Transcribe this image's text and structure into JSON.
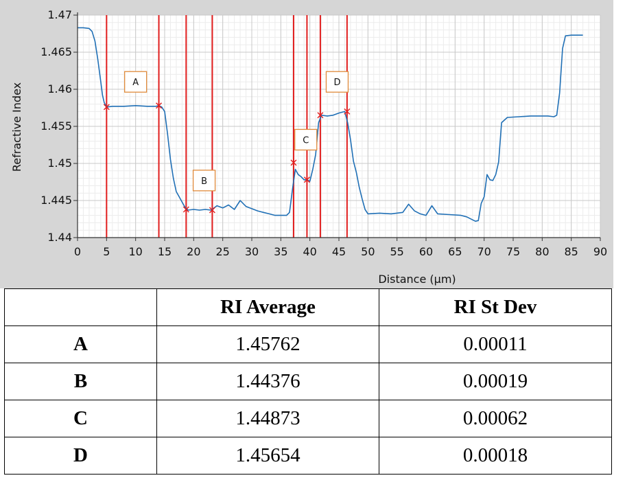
{
  "chart_data": {
    "type": "line",
    "xlabel": "Distance (µm)",
    "ylabel": "Refractive Index",
    "xlim": [
      0,
      90
    ],
    "ylim": [
      1.44,
      1.47
    ],
    "xticks": [
      0,
      5,
      10,
      15,
      20,
      25,
      30,
      35,
      40,
      45,
      50,
      55,
      60,
      65,
      70,
      75,
      80,
      85,
      90
    ],
    "yticks": [
      1.44,
      1.445,
      1.45,
      1.455,
      1.46,
      1.465,
      1.47
    ],
    "ytick_labels": [
      "1.44",
      "1.445",
      "1.45",
      "1.455",
      "1.46",
      "1.465",
      "1.47"
    ],
    "grid": true,
    "series": [
      {
        "color": "#1f6fb5",
        "x": [
          0,
          1,
          2,
          2.5,
          3,
          3.5,
          4,
          4.3,
          4.6,
          5,
          6,
          8,
          10,
          12,
          13.5,
          14,
          14.5,
          15,
          15.5,
          16,
          16.5,
          17,
          17.5,
          18,
          18.5,
          19,
          20,
          21,
          22,
          23,
          24,
          25,
          26,
          27,
          28,
          29,
          30,
          31,
          32,
          33,
          34,
          35,
          36,
          36.5,
          37,
          37.5,
          38,
          38.5,
          39,
          39.5,
          40,
          40.5,
          41,
          41.5,
          42,
          43,
          44,
          45,
          46,
          46.5,
          47,
          47.5,
          48,
          48.5,
          49,
          49.5,
          50,
          52,
          54,
          56,
          57,
          58,
          59,
          60,
          61,
          62,
          64,
          66,
          67,
          68,
          68.5,
          69,
          69.5,
          70,
          70.5,
          71,
          71.5,
          72,
          72.5,
          73,
          74,
          76,
          78,
          80,
          81,
          82,
          82.5,
          83,
          83.5,
          84,
          85,
          86,
          87
        ],
        "y": [
          1.4683,
          1.4683,
          1.4682,
          1.4678,
          1.4665,
          1.464,
          1.461,
          1.4592,
          1.4582,
          1.4576,
          1.4577,
          1.4577,
          1.4578,
          1.4577,
          1.4577,
          1.4578,
          1.4576,
          1.457,
          1.454,
          1.4505,
          1.448,
          1.4462,
          1.4455,
          1.4448,
          1.4441,
          1.4437,
          1.4438,
          1.4437,
          1.4438,
          1.4437,
          1.4443,
          1.444,
          1.4444,
          1.4438,
          1.445,
          1.4442,
          1.4439,
          1.4436,
          1.4434,
          1.4432,
          1.443,
          1.443,
          1.443,
          1.4434,
          1.4465,
          1.4492,
          1.4485,
          1.4482,
          1.4478,
          1.4478,
          1.4476,
          1.4492,
          1.4512,
          1.4555,
          1.4565,
          1.4564,
          1.4565,
          1.4568,
          1.457,
          1.4555,
          1.4532,
          1.4503,
          1.4488,
          1.4468,
          1.4452,
          1.4438,
          1.4432,
          1.4433,
          1.4432,
          1.4434,
          1.4445,
          1.4436,
          1.4432,
          1.443,
          1.4443,
          1.4432,
          1.4431,
          1.443,
          1.4428,
          1.4424,
          1.4422,
          1.4423,
          1.4446,
          1.4455,
          1.4485,
          1.4478,
          1.4477,
          1.4485,
          1.4502,
          1.4555,
          1.4562,
          1.4563,
          1.4564,
          1.4564,
          1.4564,
          1.4563,
          1.4565,
          1.4595,
          1.4655,
          1.4672,
          1.4673,
          1.4673,
          1.4673
        ]
      }
    ],
    "vlines": [
      5,
      14,
      18.7,
      23.2,
      37.2,
      39.5,
      41.8,
      46.4
    ],
    "vline_color": "#e11d1d",
    "markers": [
      {
        "x": 5,
        "y": 1.4576
      },
      {
        "x": 14,
        "y": 1.4578
      },
      {
        "x": 18.7,
        "y": 1.4438
      },
      {
        "x": 23.2,
        "y": 1.4437
      },
      {
        "x": 37.2,
        "y": 1.4501
      },
      {
        "x": 39.5,
        "y": 1.4478
      },
      {
        "x": 41.8,
        "y": 1.4565
      },
      {
        "x": 46.4,
        "y": 1.457
      }
    ],
    "region_labels": [
      {
        "text": "A",
        "x": 10,
        "y": 1.461
      },
      {
        "text": "B",
        "x": 21.8,
        "y": 1.4477
      },
      {
        "text": "C",
        "x": 39.3,
        "y": 1.4532
      },
      {
        "text": "D",
        "x": 44.7,
        "y": 1.461
      }
    ],
    "label_border_color": "#e08a3a"
  },
  "table": {
    "headers": [
      "",
      "RI Average",
      "RI St Dev"
    ],
    "rows": [
      {
        "label": "A",
        "avg": "1.45762",
        "sd": "0.00011"
      },
      {
        "label": "B",
        "avg": "1.44376",
        "sd": "0.00019"
      },
      {
        "label": "C",
        "avg": "1.44873",
        "sd": "0.00062"
      },
      {
        "label": "D",
        "avg": "1.45654",
        "sd": "0.00018"
      }
    ]
  }
}
